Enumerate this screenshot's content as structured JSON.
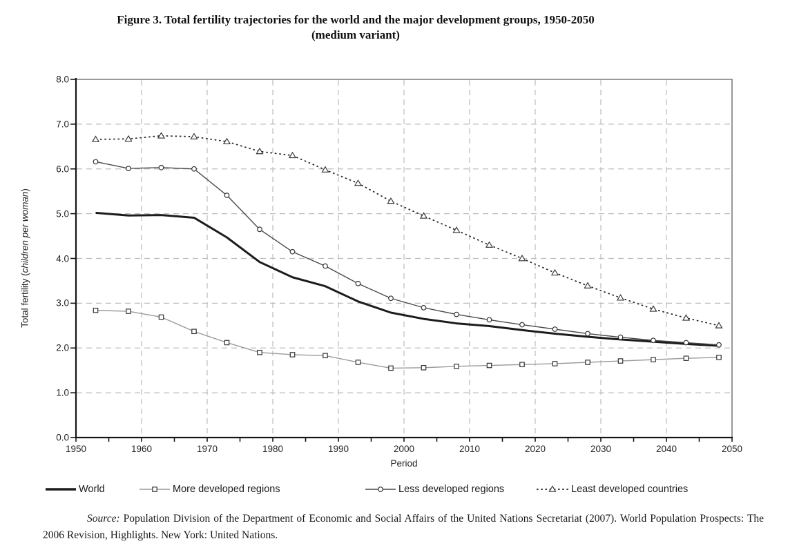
{
  "page": {
    "title_line1": "Figure 3. Total fertility trajectories for the world and the major development groups, 1950-2050",
    "title_line2": "(medium variant)",
    "source_prefix": "Source:",
    "source_text": " Population Division of the Department of Economic and Social Affairs of the United Nations Secretariat (2007). World Population Prospects: The 2006 Revision, Highlights. New York: United Nations."
  },
  "chart_data": {
    "type": "line",
    "title": "Figure 3. Total fertility trajectories for the world and the major development groups, 1950-2050 (medium variant)",
    "xlabel": "Period",
    "ylabel": "Total fertility (children per woman)",
    "ylabel_prefix": "Total fertility (",
    "ylabel_italic": "children per woman",
    "ylabel_suffix": ")",
    "xlim": [
      1950,
      2050
    ],
    "ylim": [
      0.0,
      8.0
    ],
    "x_ticks": [
      1950,
      1960,
      1970,
      1980,
      1990,
      2000,
      2010,
      2020,
      2030,
      2040,
      2050
    ],
    "x_minor_tick_step": 5,
    "y_ticks": [
      "0.0",
      "1.0",
      "2.0",
      "3.0",
      "4.0",
      "5.0",
      "6.0",
      "7.0",
      "8.0"
    ],
    "grid": {
      "horizontal": "dashed gray every 1.0",
      "vertical": "dashed gray every decade"
    },
    "legend_position": "bottom",
    "x_years": [
      1953,
      1958,
      1963,
      1968,
      1973,
      1978,
      1983,
      1988,
      1993,
      1998,
      2003,
      2008,
      2013,
      2018,
      2023,
      2028,
      2033,
      2038,
      2043,
      2048
    ],
    "series": [
      {
        "name": "World",
        "marker": "none",
        "line_style": "solid-thick",
        "color": "#1c1c1c",
        "values": [
          5.02,
          4.96,
          4.97,
          4.91,
          4.47,
          3.92,
          3.58,
          3.38,
          3.04,
          2.79,
          2.65,
          2.55,
          2.49,
          2.4,
          2.32,
          2.25,
          2.19,
          2.14,
          2.09,
          2.05
        ]
      },
      {
        "name": "More developed regions",
        "marker": "square",
        "line_style": "solid-thin",
        "color": "#9a9a9a",
        "marker_color": "#333333",
        "values": [
          2.84,
          2.82,
          2.69,
          2.37,
          2.12,
          1.9,
          1.85,
          1.83,
          1.68,
          1.55,
          1.56,
          1.59,
          1.61,
          1.63,
          1.65,
          1.68,
          1.71,
          1.74,
          1.77,
          1.79
        ]
      },
      {
        "name": "Less developed regions",
        "marker": "circle",
        "line_style": "solid-thin",
        "color": "#4a4a4a",
        "marker_color": "#333333",
        "values": [
          6.16,
          6.01,
          6.03,
          6.0,
          5.41,
          4.65,
          4.15,
          3.83,
          3.44,
          3.11,
          2.9,
          2.75,
          2.63,
          2.52,
          2.42,
          2.32,
          2.24,
          2.17,
          2.12,
          2.07
        ]
      },
      {
        "name": "Least developed countries",
        "marker": "triangle",
        "line_style": "dotted",
        "color": "#222222",
        "marker_color": "#333333",
        "values": [
          6.66,
          6.67,
          6.74,
          6.72,
          6.61,
          6.39,
          6.3,
          5.98,
          5.68,
          5.28,
          4.95,
          4.63,
          4.3,
          4.0,
          3.68,
          3.39,
          3.12,
          2.87,
          2.67,
          2.5
        ]
      }
    ]
  }
}
